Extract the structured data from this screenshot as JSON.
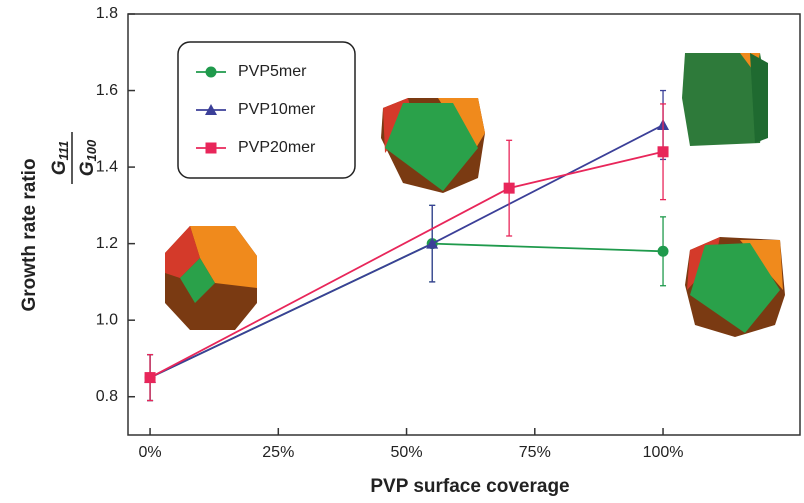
{
  "chart_data": {
    "type": "line",
    "x_label": "PVP surface coverage",
    "y_label": "Growth rate ratio",
    "y_label_numerator": {
      "symbol": "G",
      "subscript": "111"
    },
    "y_label_denominator": {
      "symbol": "G",
      "subscript": "100"
    },
    "xlim": [
      -4.3,
      126.7
    ],
    "ylim": [
      0.7,
      1.8
    ],
    "xticks": [
      {
        "value": 0,
        "label": "0%"
      },
      {
        "value": 25,
        "label": "25%"
      },
      {
        "value": 50,
        "label": "50%"
      },
      {
        "value": 75,
        "label": "75%"
      },
      {
        "value": 100,
        "label": "100%"
      }
    ],
    "yticks": [
      0.8,
      {
        "value": 1,
        "label": "1.0"
      },
      1.2,
      1.4,
      1.6,
      1.8
    ],
    "legend": "upper left",
    "series": [
      {
        "name": "PVP5mer",
        "color": "#1f9a4c",
        "marker": "circle",
        "x": [
          0,
          55,
          100
        ],
        "values": [
          0.85,
          1.2,
          1.18
        ],
        "errors": [
          0.06,
          0.1,
          0.09
        ]
      },
      {
        "name": "PVP10mer",
        "color": "#3b3f98",
        "marker": "triangle",
        "x": [
          0,
          55,
          100
        ],
        "values": [
          0.85,
          1.2,
          1.51
        ],
        "errors": [
          0.06,
          0.1,
          0.09
        ]
      },
      {
        "name": "PVP20mer",
        "color": "#e8265a",
        "marker": "square",
        "x": [
          0,
          70,
          100
        ],
        "values": [
          0.85,
          1.345,
          1.44
        ],
        "errors": [
          0.06,
          0.125,
          0.125
        ]
      }
    ]
  }
}
